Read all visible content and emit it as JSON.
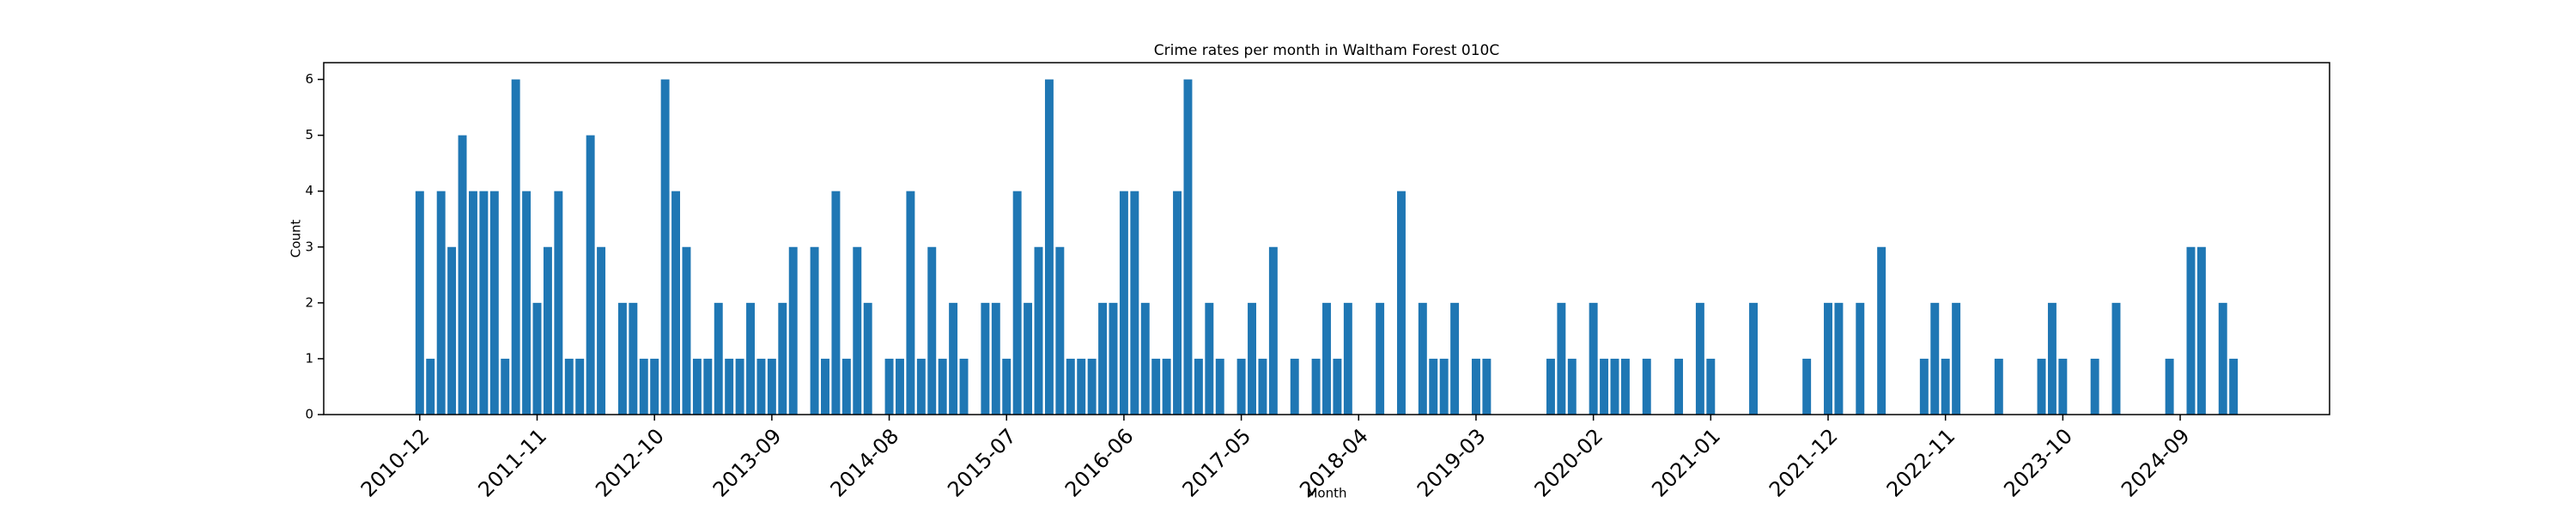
{
  "chart_data": {
    "type": "bar",
    "title": "Crime rates per month in Waltham Forest 010C",
    "x_label": "Month",
    "y_label": "Count",
    "color": "#1f77b4",
    "x": [
      "2010-12",
      "2011-01",
      "2011-02",
      "2011-03",
      "2011-04",
      "2011-05",
      "2011-06",
      "2011-07",
      "2011-08",
      "2011-09",
      "2011-10",
      "2011-11",
      "2011-12",
      "2012-01",
      "2012-02",
      "2012-03",
      "2012-04",
      "2012-05",
      "2012-07",
      "2012-08",
      "2012-09",
      "2012-10",
      "2012-11",
      "2012-12",
      "2013-01",
      "2013-02",
      "2013-03",
      "2013-04",
      "2013-05",
      "2013-06",
      "2013-07",
      "2013-08",
      "2013-09",
      "2013-10",
      "2013-11",
      "2014-01",
      "2014-02",
      "2014-03",
      "2014-04",
      "2014-05",
      "2014-06",
      "2014-08",
      "2014-09",
      "2014-10",
      "2014-11",
      "2014-12",
      "2015-01",
      "2015-02",
      "2015-03",
      "2015-05",
      "2015-06",
      "2015-07",
      "2015-08",
      "2015-09",
      "2015-10",
      "2015-11",
      "2015-12",
      "2016-01",
      "2016-02",
      "2016-03",
      "2016-04",
      "2016-05",
      "2016-06",
      "2016-07",
      "2016-08",
      "2016-09",
      "2016-10",
      "2016-11",
      "2016-12",
      "2017-01",
      "2017-02",
      "2017-03",
      "2017-05",
      "2017-06",
      "2017-07",
      "2017-08",
      "2017-10",
      "2017-12",
      "2018-01",
      "2018-02",
      "2018-03",
      "2018-06",
      "2018-08",
      "2018-10",
      "2018-11",
      "2018-12",
      "2019-01",
      "2019-03",
      "2019-04",
      "2019-10",
      "2019-11",
      "2019-12",
      "2020-02",
      "2020-03",
      "2020-04",
      "2020-05",
      "2020-07",
      "2020-10",
      "2020-12",
      "2021-01",
      "2021-05",
      "2021-10",
      "2021-12",
      "2022-01",
      "2022-03",
      "2022-05",
      "2022-09",
      "2022-10",
      "2022-11",
      "2022-12",
      "2023-04",
      "2023-08",
      "2023-09",
      "2023-10",
      "2024-01",
      "2024-03",
      "2024-08",
      "2024-10",
      "2024-11",
      "2025-01",
      "2025-02"
    ],
    "values": [
      4,
      1,
      4,
      3,
      5,
      4,
      4,
      4,
      1,
      6,
      4,
      2,
      3,
      4,
      1,
      1,
      5,
      3,
      2,
      2,
      1,
      1,
      6,
      4,
      3,
      1,
      1,
      2,
      1,
      1,
      2,
      1,
      1,
      2,
      3,
      3,
      1,
      4,
      1,
      3,
      2,
      1,
      1,
      4,
      1,
      3,
      1,
      2,
      1,
      2,
      2,
      1,
      4,
      2,
      3,
      6,
      3,
      1,
      1,
      1,
      2,
      2,
      4,
      4,
      2,
      1,
      1,
      4,
      6,
      1,
      2,
      1,
      1,
      2,
      1,
      3,
      1,
      1,
      2,
      1,
      2,
      2,
      4,
      2,
      1,
      1,
      2,
      1,
      1,
      1,
      2,
      1,
      2,
      1,
      1,
      1,
      1,
      1,
      2,
      1,
      2,
      1,
      2,
      2,
      2,
      3,
      1,
      2,
      1,
      2,
      1,
      1,
      2,
      1,
      1,
      2,
      1,
      3,
      3,
      2,
      1
    ],
    "xlim": [
      "2010-03",
      "2025-11"
    ],
    "xticks": [
      "2010-12",
      "2011-11",
      "2012-10",
      "2013-09",
      "2014-08",
      "2015-07",
      "2016-06",
      "2017-05",
      "2018-04",
      "2019-03",
      "2020-02",
      "2021-01",
      "2021-12",
      "2022-11",
      "2023-10",
      "2024-09"
    ],
    "ylim": [
      0,
      6.3
    ],
    "yticks": [
      0,
      1,
      2,
      3,
      4,
      5,
      6
    ]
  }
}
